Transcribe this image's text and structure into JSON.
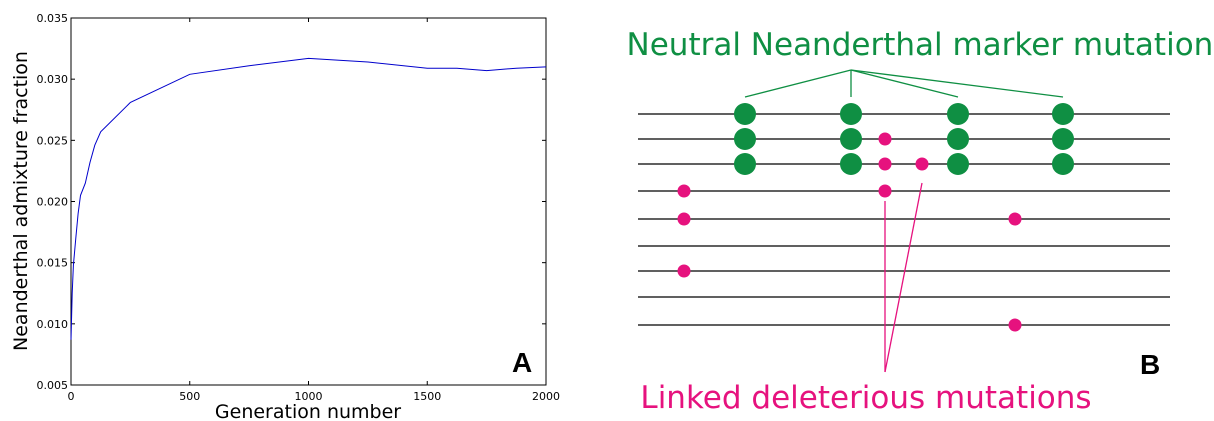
{
  "colors": {
    "line": "#0000cc",
    "green": "#0f8f43",
    "pink": "#e6127e",
    "black": "#000000"
  },
  "chart_data": [
    {
      "type": "line",
      "title": "",
      "xlabel": "Generation number",
      "ylabel": "Neanderthal admixture fraction",
      "xlim": [
        0,
        2000
      ],
      "ylim": [
        0.005,
        0.035
      ],
      "xticks": [
        "0",
        "500",
        "1000",
        "1500",
        "2000"
      ],
      "yticks": [
        "0.005",
        "0.010",
        "0.015",
        "0.020",
        "0.025",
        "0.030",
        "0.035"
      ],
      "panel_label": "A",
      "series": [
        {
          "x": [
            0,
            5,
            10,
            20,
            30,
            40,
            60,
            80,
            100,
            125,
            250,
            500,
            750,
            1000,
            1250,
            1500,
            1625,
            1750,
            1875,
            2000
          ],
          "values": [
            0.0087,
            0.0125,
            0.0148,
            0.017,
            0.019,
            0.0205,
            0.0215,
            0.0232,
            0.0246,
            0.0257,
            0.0281,
            0.0304,
            0.0311,
            0.0317,
            0.0314,
            0.0309,
            0.0309,
            0.0307,
            0.0309,
            0.031
          ]
        }
      ]
    },
    {
      "type": "diagram",
      "panel_label": "B",
      "top_label": "Neutral Neanderthal marker mutations",
      "bottom_label": "Linked deleterious mutations"
    }
  ]
}
